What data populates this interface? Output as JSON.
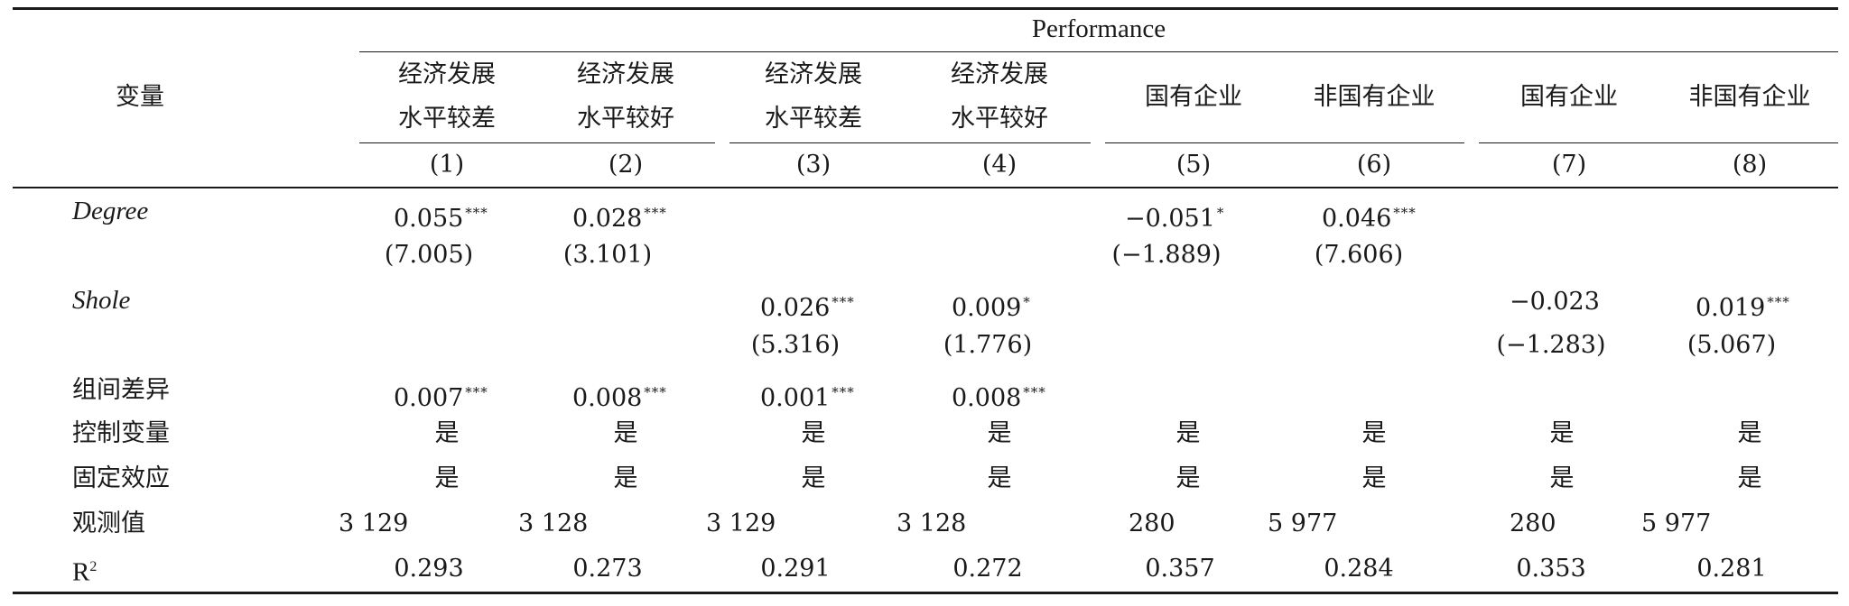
{
  "header": {
    "row_label": "变量",
    "group_title": "Performance",
    "columns": [
      {
        "line1": "经济发展",
        "line2": "水平较差",
        "num": "(1)"
      },
      {
        "line1": "经济发展",
        "line2": "水平较好",
        "num": "(2)"
      },
      {
        "line1": "经济发展",
        "line2": "水平较差",
        "num": "(3)"
      },
      {
        "line1": "经济发展",
        "line2": "水平较好",
        "num": "(4)"
      },
      {
        "single": "国有企业",
        "num": "(5)"
      },
      {
        "single": "非国有企业",
        "num": "(6)"
      },
      {
        "single": "国有企业",
        "num": "(7)"
      },
      {
        "single": "非国有企业",
        "num": "(8)"
      }
    ]
  },
  "rows": {
    "degree": {
      "label": "Degree",
      "coefs": [
        "0.055",
        "0.028",
        "",
        "",
        "−0.051",
        "0.046",
        "",
        ""
      ],
      "stars": [
        "***",
        "***",
        "",
        "",
        "*",
        "***",
        "",
        ""
      ],
      "tstats": [
        "(7.005)",
        "(3.101)",
        "",
        "",
        "(−1.889)",
        "(7.606)",
        "",
        ""
      ]
    },
    "shole": {
      "label": "Shole",
      "coefs": [
        "",
        "",
        "0.026",
        "0.009",
        "",
        "",
        "−0.023",
        "0.019"
      ],
      "stars": [
        "",
        "",
        "***",
        "*",
        "",
        "",
        "",
        "***"
      ],
      "tstats": [
        "",
        "",
        "(5.316)",
        "(1.776)",
        "",
        "",
        "(−1.283)",
        "(5.067)"
      ]
    },
    "group_diff": {
      "label": "组间差异",
      "values": [
        "0.007",
        "0.008",
        "0.001",
        "0.008"
      ],
      "stars": [
        "***",
        "***",
        "***",
        "***"
      ]
    },
    "controls": {
      "label": "控制变量",
      "values": [
        "是",
        "是",
        "是",
        "是",
        "是",
        "是",
        "是",
        "是"
      ]
    },
    "fixed_effects": {
      "label": "固定效应",
      "values": [
        "是",
        "是",
        "是",
        "是",
        "是",
        "是",
        "是",
        "是"
      ]
    },
    "observations": {
      "label": "观测值",
      "values": [
        "3 129",
        "3 128",
        "3 129",
        "3 128",
        "280",
        "5 977",
        "280",
        "5 977"
      ]
    },
    "r2": {
      "label": "R",
      "label_sup": "2",
      "values": [
        "0.293",
        "0.273",
        "0.291",
        "0.272",
        "0.357",
        "0.284",
        "0.353",
        "0.281"
      ]
    }
  }
}
